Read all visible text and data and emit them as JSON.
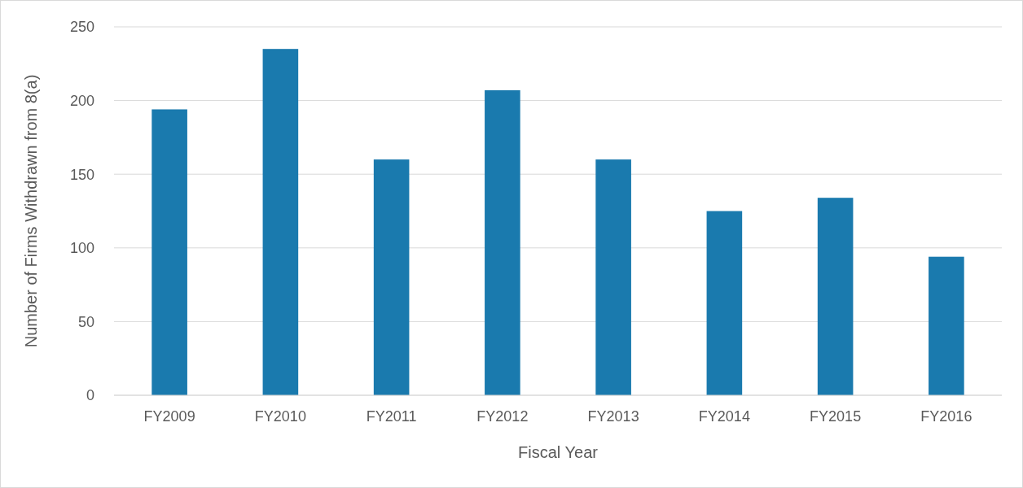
{
  "chart_data": {
    "type": "bar",
    "xlabel": "Fiscal Year",
    "ylabel": "Number of Firms Withdrawn from 8(a)",
    "categories": [
      "FY2009",
      "FY2010",
      "FY2011",
      "FY2012",
      "FY2013",
      "FY2014",
      "FY2015",
      "FY2016"
    ],
    "values": [
      194,
      235,
      160,
      207,
      160,
      125,
      134,
      94
    ],
    "color": "#1a7aae",
    "ylim": [
      0,
      250
    ],
    "yticks": [
      0,
      50,
      100,
      150,
      200,
      250
    ],
    "grid": "y"
  }
}
